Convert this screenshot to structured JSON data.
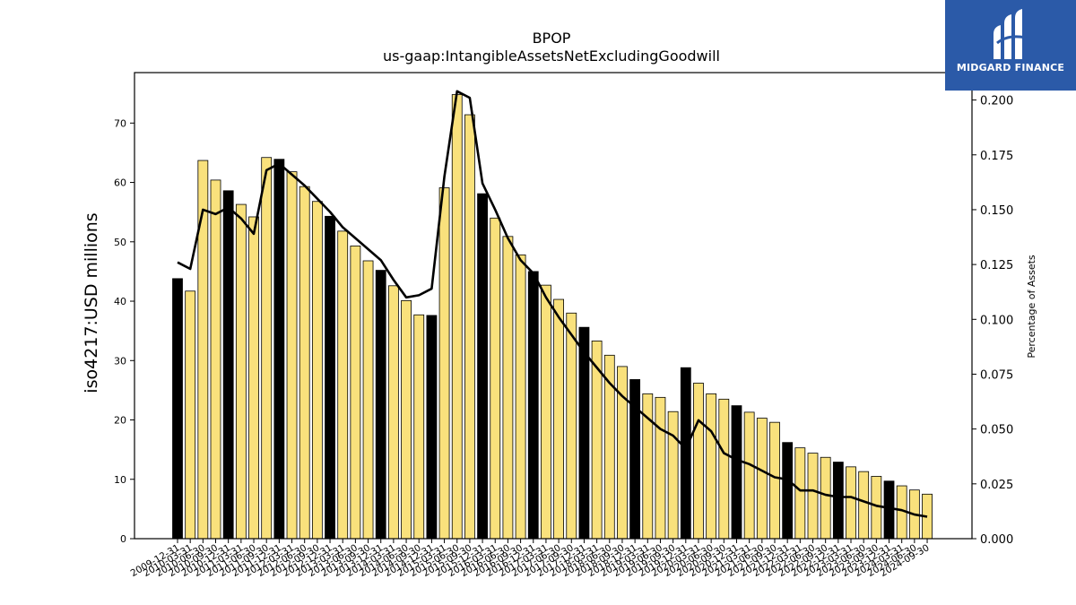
{
  "chart_data": {
    "type": "bar",
    "title": "BPOP",
    "subtitle": "us-gaap:IntangibleAssetsNetExcludingGoodwill",
    "ylabel": "iso4217:USD  millions",
    "ylabel_right": "Percentage of Assets",
    "ylim": [
      0,
      78.5
    ],
    "ylim_right": [
      0,
      0.2125
    ],
    "yticks": [
      0,
      10,
      20,
      30,
      40,
      50,
      60,
      70
    ],
    "yticks_right": [
      "0.000",
      "0.025",
      "0.050",
      "0.075",
      "0.100",
      "0.125",
      "0.150",
      "0.175",
      "0.200"
    ],
    "categories": [
      "2009-12-31",
      "2010-03-31",
      "2010-06-30",
      "2010-09-30",
      "2010-12-31",
      "2011-03-31",
      "2011-06-30",
      "2011-09-30",
      "2011-12-31",
      "2012-03-31",
      "2012-06-30",
      "2012-09-30",
      "2012-12-31",
      "2013-03-31",
      "2013-06-30",
      "2013-09-30",
      "2013-12-31",
      "2014-03-31",
      "2014-06-30",
      "2014-09-30",
      "2014-12-31",
      "2015-03-31",
      "2015-06-30",
      "2015-09-30",
      "2015-12-31",
      "2016-03-31",
      "2016-06-30",
      "2016-09-30",
      "2016-12-31",
      "2017-03-31",
      "2017-06-30",
      "2017-09-30",
      "2017-12-31",
      "2018-03-31",
      "2018-06-30",
      "2018-09-30",
      "2018-12-31",
      "2019-03-31",
      "2019-06-30",
      "2019-09-30",
      "2019-12-31",
      "2020-03-31",
      "2020-06-30",
      "2020-09-30",
      "2020-12-31",
      "2021-03-31",
      "2021-06-30",
      "2021-09-30",
      "2021-12-31",
      "2022-03-31",
      "2022-06-30",
      "2022-09-30",
      "2022-12-31",
      "2023-03-31",
      "2023-06-30",
      "2023-09-30",
      "2023-12-31",
      "2024-03-31",
      "2024-06-30",
      "2024-09-30"
    ],
    "xtick_labels_shown": [
      "2009-12-31",
      "2010-03-31",
      "2010-06-30",
      "2010-09-30",
      "2010-12-31",
      "2011-03-31",
      "2011-06-30",
      "2011-09-30",
      "2011-12-31",
      "2012-03-31",
      "2012-06-30",
      "2012-09-30",
      "2012-12-31",
      "2013-03-31",
      "2013-06-30",
      "2013-09-30",
      "2013-12-31",
      "2014-03-31",
      "2014-06-30",
      "2014-09-30",
      "2014-12-31",
      "2015-03-31",
      "2015-06-30",
      "2015-09-30",
      "2015-12-31",
      "2016-03-31",
      "2016-06-30",
      "2016-09-30",
      "2016-12-31",
      "2017-03-31",
      "2017-06-30",
      "2017-09-30",
      "2017-12-31",
      "2018-03-31",
      "2018-06-30",
      "2018-09-30",
      "2018-12-31",
      "2019-03-31",
      "2019-06-30",
      "2019-09-30",
      "2019-12-31",
      "2020-03-31",
      "2020-06-30",
      "2020-09-30",
      "2020-12-31",
      "2021-03-31",
      "2021-06-30",
      "2021-09-30",
      "2021-12-31",
      "2022-03-31",
      "2022-06-30",
      "2022-09-30",
      "2022-12-31",
      "2023-03-31",
      "2023-06-30",
      "2023-09-30",
      "2023-12-31",
      "2024-03-31",
      "2024-06-30",
      "2024-09-30"
    ],
    "values": [
      43.8,
      41.7,
      63.7,
      60.4,
      58.6,
      56.3,
      54.2,
      64.2,
      63.9,
      61.8,
      59.3,
      56.8,
      54.3,
      51.8,
      49.3,
      46.8,
      45.2,
      42.6,
      40.1,
      37.7,
      37.6,
      59.1,
      74.8,
      71.4,
      58.1,
      54.0,
      50.9,
      47.8,
      45.0,
      42.7,
      40.3,
      38.0,
      35.6,
      33.3,
      30.9,
      29.0,
      26.8,
      24.4,
      23.8,
      21.4,
      28.8,
      26.2,
      24.4,
      23.5,
      22.4,
      21.3,
      20.3,
      19.6,
      16.2,
      15.3,
      14.4,
      13.7,
      12.9,
      12.1,
      11.3,
      10.5,
      9.7,
      8.9,
      8.2,
      7.5
    ],
    "highlight_color": "#000000",
    "bar_color": "#f9e17c",
    "bar_edge": "#000000",
    "highlight_note_dates": "December 31 quarters drawn in black",
    "line_series": {
      "name": "Percentage of Assets",
      "values": [
        0.126,
        0.123,
        0.15,
        0.148,
        0.151,
        0.146,
        0.139,
        0.168,
        0.171,
        0.166,
        0.161,
        0.155,
        0.149,
        0.142,
        0.137,
        0.132,
        0.127,
        0.118,
        0.11,
        0.111,
        0.114,
        0.165,
        0.204,
        0.201,
        0.162,
        0.15,
        0.137,
        0.127,
        0.121,
        0.11,
        0.101,
        0.093,
        0.085,
        0.078,
        0.071,
        0.065,
        0.06,
        0.055,
        0.05,
        0.047,
        0.041,
        0.054,
        0.049,
        0.039,
        0.036,
        0.034,
        0.031,
        0.028,
        0.027,
        0.022,
        0.022,
        0.02,
        0.019,
        0.019,
        0.017,
        0.015,
        0.014,
        0.013,
        0.011,
        0.01
      ]
    },
    "grid": false
  },
  "logo": {
    "text": "MIDGARD FINANCE",
    "background": "#2b5aa8"
  }
}
